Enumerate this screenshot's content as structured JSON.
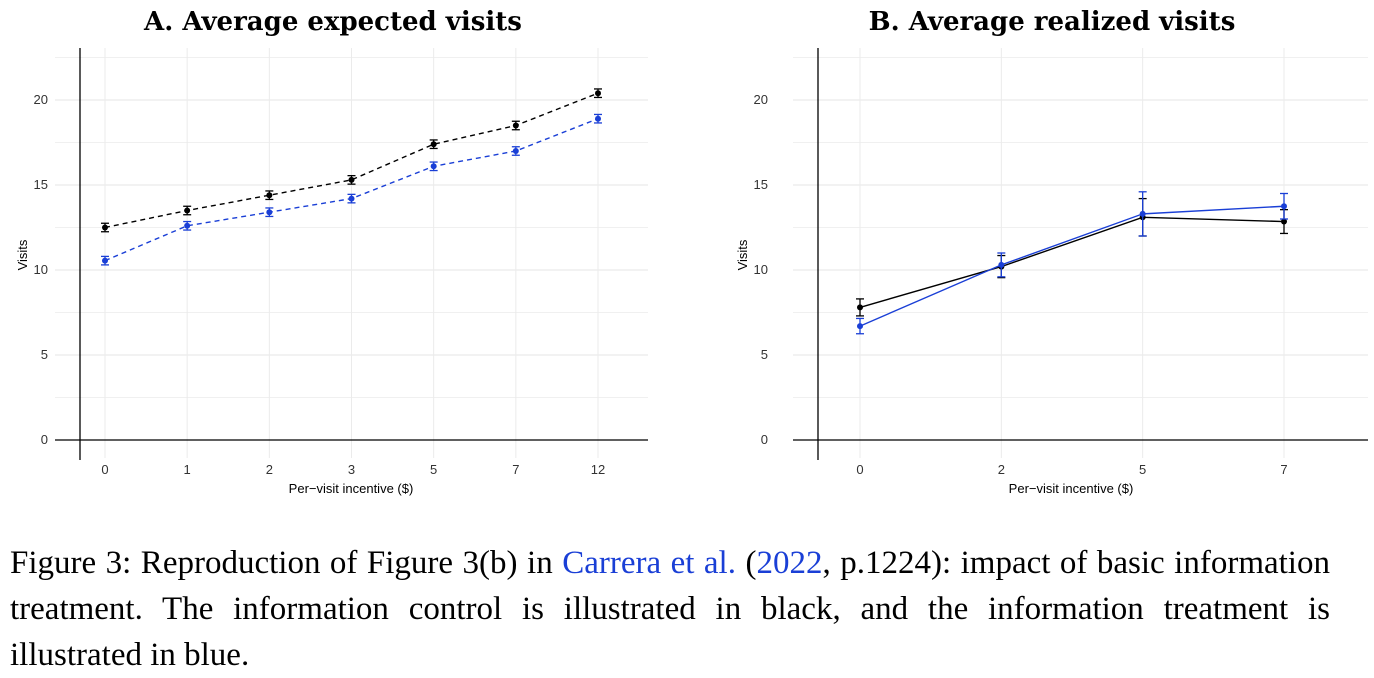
{
  "colors": {
    "control": "#000000",
    "treatment": "#1a3fd6",
    "grid": "#ebebeb",
    "link": "#1a3fd6"
  },
  "chart_data": [
    {
      "type": "line",
      "title": "A. Average expected visits",
      "xlabel": "Per−visit incentive ($)",
      "ylabel": "Visits",
      "categories": [
        "0",
        "1",
        "2",
        "3",
        "5",
        "7",
        "12"
      ],
      "ylim": [
        0,
        23
      ],
      "yticks": [
        0,
        5,
        10,
        15,
        20
      ],
      "grid": true,
      "line_style": "dashed",
      "series": [
        {
          "color": "#000000",
          "values": [
            12.5,
            13.5,
            14.4,
            15.3,
            17.4,
            18.5,
            20.4
          ],
          "ci": [
            0.25,
            0.25,
            0.25,
            0.25,
            0.25,
            0.25,
            0.25
          ]
        },
        {
          "color": "#1a3fd6",
          "values": [
            10.55,
            12.6,
            13.4,
            14.2,
            16.1,
            17.0,
            18.9
          ],
          "ci": [
            0.25,
            0.25,
            0.25,
            0.25,
            0.25,
            0.25,
            0.25
          ]
        }
      ]
    },
    {
      "type": "line",
      "title": "B. Average realized visits",
      "xlabel": "Per−visit incentive ($)",
      "ylabel": "Visits",
      "categories": [
        "0",
        "2",
        "5",
        "7"
      ],
      "ylim": [
        0,
        23
      ],
      "yticks": [
        0,
        5,
        10,
        15,
        20
      ],
      "grid": true,
      "line_style": "solid",
      "series": [
        {
          "color": "#000000",
          "values": [
            7.8,
            10.2,
            13.1,
            12.85
          ],
          "ci": [
            0.5,
            0.65,
            1.1,
            0.7
          ]
        },
        {
          "color": "#1a3fd6",
          "values": [
            6.7,
            10.3,
            13.3,
            13.75
          ],
          "ci": [
            0.45,
            0.7,
            1.3,
            0.75
          ]
        }
      ]
    }
  ],
  "caption": {
    "before": "Figure 3: Reproduction of Figure 3(b) in ",
    "link1": "Carrera et al.",
    "middle1": " (",
    "link2": "2022",
    "after": ", p.1224): impact of basic information treatment. The information control is illustrated in black, and the information treatment is illustrated in blue."
  }
}
